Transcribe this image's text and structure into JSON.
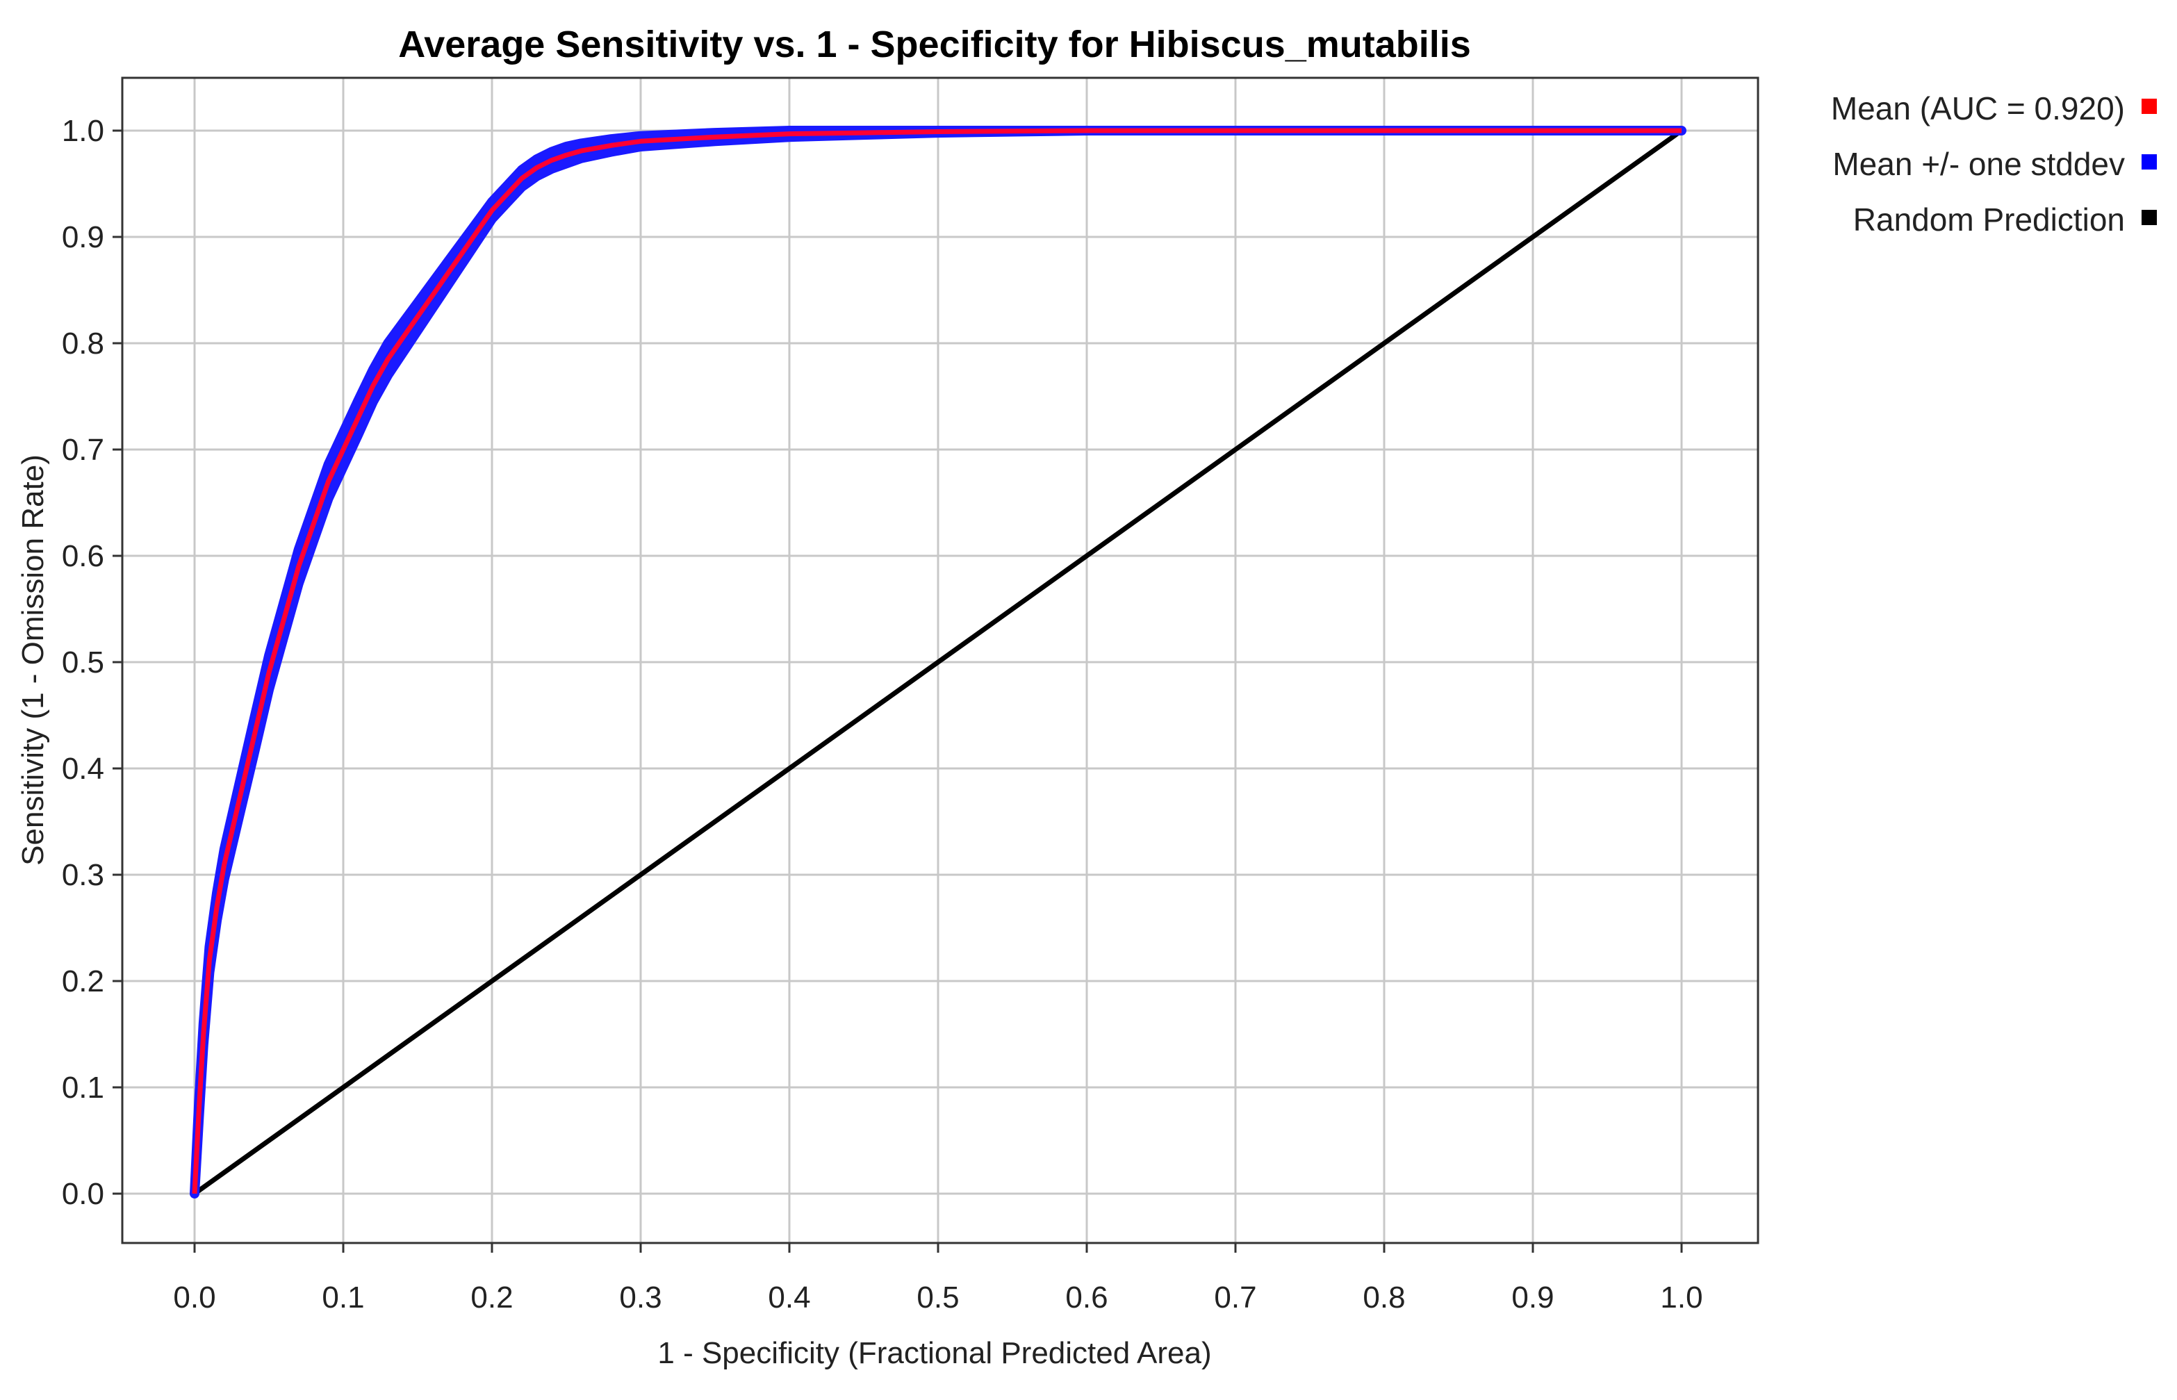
{
  "chart_data": {
    "type": "line",
    "title": "Average Sensitivity vs. 1 - Specificity for Hibiscus_mutabilis",
    "xlabel": "1 - Specificity (Fractional Predicted Area)",
    "ylabel": "Sensitivity (1 - Omission Rate)",
    "xlim": [
      -0.05,
      1.05
    ],
    "ylim": [
      -0.045,
      1.05
    ],
    "x_ticks": [
      "0.0",
      "0.1",
      "0.2",
      "0.3",
      "0.4",
      "0.5",
      "0.6",
      "0.7",
      "0.8",
      "0.9",
      "1.0"
    ],
    "y_ticks": [
      "0.0",
      "0.1",
      "0.2",
      "0.3",
      "0.4",
      "0.5",
      "0.6",
      "0.7",
      "0.8",
      "0.9",
      "1.0"
    ],
    "grid": true,
    "legend_position": "top-right-outside",
    "legend": [
      {
        "label": "Mean (AUC = 0.920)",
        "color": "#ff0000"
      },
      {
        "label": "Mean +/- one stddev",
        "color": "#0000ff"
      },
      {
        "label": "Random Prediction",
        "color": "#000000"
      }
    ],
    "series": [
      {
        "role": "mean",
        "color": "#ff0033",
        "x": [
          0.0,
          0.003,
          0.006,
          0.01,
          0.015,
          0.02,
          0.03,
          0.04,
          0.05,
          0.06,
          0.07,
          0.08,
          0.09,
          0.1,
          0.11,
          0.12,
          0.13,
          0.14,
          0.15,
          0.16,
          0.17,
          0.18,
          0.19,
          0.2,
          0.21,
          0.22,
          0.23,
          0.24,
          0.25,
          0.26,
          0.28,
          0.3,
          0.35,
          0.4,
          0.45,
          0.5,
          0.6,
          0.7,
          0.8,
          0.9,
          1.0
        ],
        "y": [
          0.0,
          0.08,
          0.15,
          0.22,
          0.27,
          0.31,
          0.37,
          0.43,
          0.49,
          0.54,
          0.59,
          0.63,
          0.67,
          0.7,
          0.73,
          0.76,
          0.785,
          0.805,
          0.825,
          0.845,
          0.865,
          0.885,
          0.905,
          0.925,
          0.94,
          0.955,
          0.965,
          0.972,
          0.977,
          0.981,
          0.986,
          0.99,
          0.994,
          0.997,
          0.998,
          0.999,
          1.0,
          1.0,
          1.0,
          1.0,
          1.0
        ]
      },
      {
        "role": "stddev_band",
        "color": "#1a1aff",
        "band_halfwidth": [
          0.0,
          0.008,
          0.01,
          0.012,
          0.013,
          0.014,
          0.015,
          0.016,
          0.016,
          0.016,
          0.016,
          0.016,
          0.016,
          0.016,
          0.016,
          0.015,
          0.015,
          0.014,
          0.013,
          0.012,
          0.011,
          0.01,
          0.009,
          0.008,
          0.008,
          0.008,
          0.008,
          0.008,
          0.008,
          0.007,
          0.006,
          0.005,
          0.004,
          0.003,
          0.002,
          0.001,
          0.0,
          0.0,
          0.0,
          0.0,
          0.0
        ]
      },
      {
        "role": "random",
        "color": "#000000",
        "x": [
          0.0,
          1.0
        ],
        "y": [
          0.0,
          1.0
        ]
      }
    ]
  }
}
